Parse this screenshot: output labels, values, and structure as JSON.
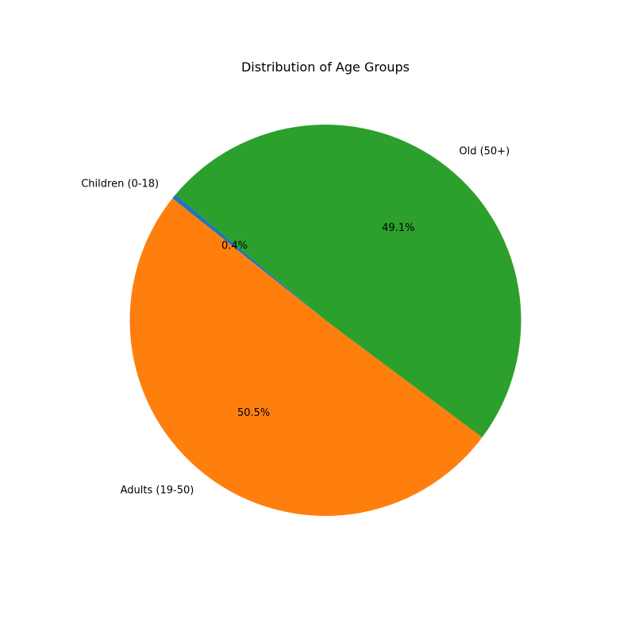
{
  "chart_data": {
    "type": "pie",
    "title": "Distribution of Age Groups",
    "categories": [
      "Children (0-18)",
      "Adults (19-50)",
      "Old (50+)"
    ],
    "values": [
      0.4,
      50.5,
      49.1
    ],
    "value_labels": [
      "0.4%",
      "50.5%",
      "49.1%"
    ],
    "colors": [
      "#1f77b4",
      "#ff7f0e",
      "#2ca02c"
    ],
    "start_angle_deg": 140,
    "direction": "counterclockwise",
    "legend": "none"
  }
}
